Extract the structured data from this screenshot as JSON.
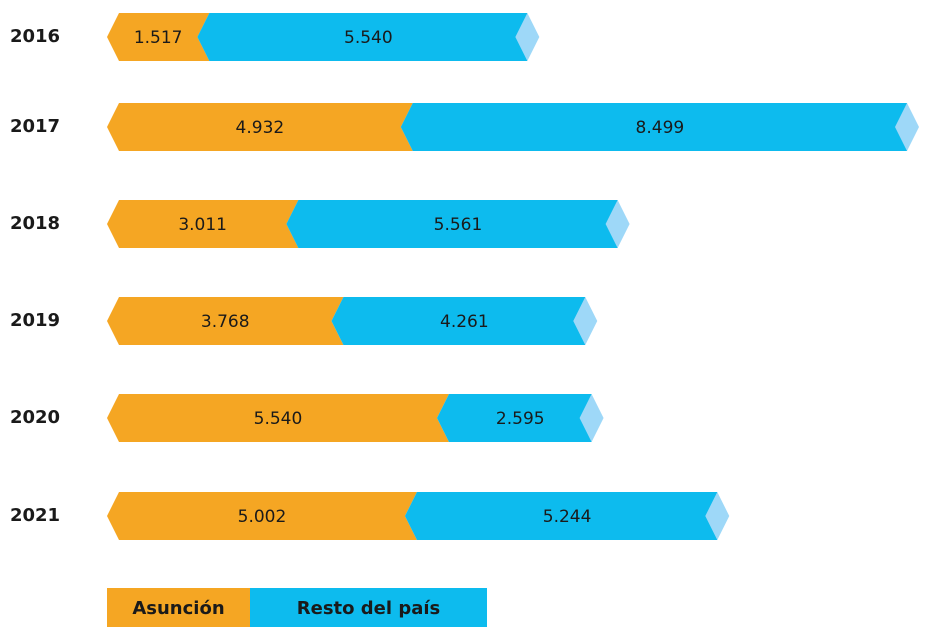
{
  "chart_data": {
    "type": "stacked-bar-horizontal",
    "categories": [
      "2016",
      "2017",
      "2018",
      "2019",
      "2020",
      "2021"
    ],
    "series": [
      {
        "name": "Asunción",
        "color": "#f5a623",
        "values": [
          1517,
          4932,
          3011,
          3768,
          5540,
          5002
        ],
        "value_labels": [
          "1.517",
          "4.932",
          "3.011",
          "3.768",
          "5.540",
          "5.002"
        ]
      },
      {
        "name": "Resto del país",
        "color": "#0dbbee",
        "values": [
          5540,
          8499,
          5561,
          4261,
          2595,
          5244
        ],
        "value_labels": [
          "5.540",
          "8.499",
          "5.561",
          "4.261",
          "2.595",
          "5.244"
        ]
      }
    ],
    "cap_color": "#9ed8f8"
  }
}
